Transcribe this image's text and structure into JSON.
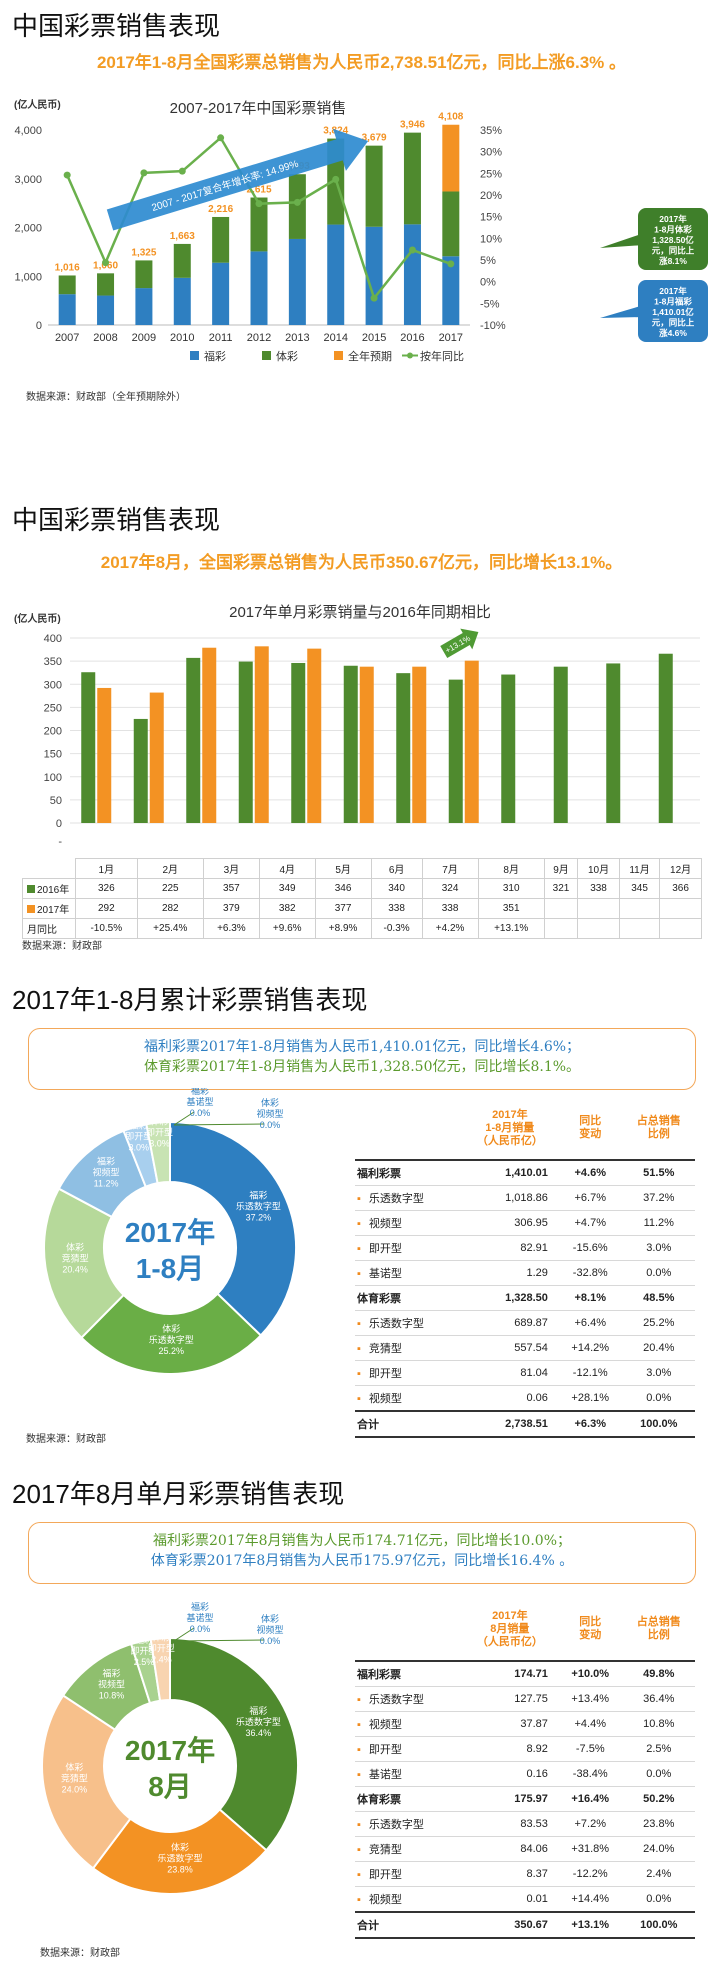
{
  "section1": {
    "title": "中国彩票销售表现",
    "subtitle": "2017年1-8月全国彩票总销售为人民币2,738.51亿元，同比上涨6.3% 。",
    "source": "数据来源：财政部（全年预期除外）"
  },
  "section2": {
    "title": "中国彩票销售表现",
    "subtitle": "2017年8月，全国彩票总销售为人民币350.67亿元，同比增长13.1%。",
    "source": "数据来源：财政部"
  },
  "section3": {
    "title": "2017年1-8月累计彩票销售表现",
    "box_line1": "福利彩票2017年1-8月销售为人民币1,410.01亿元，同比增长4.6%；",
    "box_line2": "体育彩票2017年1-8月销售为人民币1,328.50亿元，同比增长8.1%。",
    "center_line1": "2017年",
    "center_line2": "1-8月",
    "source": "数据来源：财政部"
  },
  "section4": {
    "title": "2017年8月单月彩票销售表现",
    "box_line1": "福利彩票2017年8月销售为人民币174.71亿元，同比增长10.0%；",
    "box_line2": "体育彩票2017年8月销售为人民币175.97亿元，同比增长16.4% 。",
    "center_line1": "2017年",
    "center_line2": "8月",
    "source": "数据来源：财政部"
  },
  "colors": {
    "welfare": "#2e7fc1",
    "sports": "#4f8a2e",
    "forecast": "#f39223",
    "growth": "#6ab04c",
    "accent": "#f39c24"
  },
  "chart_data": [
    {
      "type": "bar",
      "title": "2007-2017年中国彩票销售",
      "ylabel": "(亿人民币)",
      "categories": [
        "2007",
        "2008",
        "2009",
        "2010",
        "2011",
        "2012",
        "2013",
        "2014",
        "2015",
        "2016",
        "2017"
      ],
      "series": [
        {
          "name": "福彩",
          "values": [
            632,
            604,
            757,
            968,
            1278,
            1510,
            1765,
            2060,
            2015,
            2065,
            1410
          ]
        },
        {
          "name": "体彩",
          "values": [
            384,
            456,
            568,
            695,
            938,
            1105,
            1328,
            1764,
            1664,
            1881,
            1329
          ]
        },
        {
          "name": "全年预期",
          "values": [
            0,
            0,
            0,
            0,
            0,
            0,
            0,
            0,
            0,
            0,
            1369
          ]
        },
        {
          "name": "按年同比",
          "values": [
            24.6,
            4.4,
            25.1,
            25.5,
            33.2,
            18.0,
            18.3,
            23.6,
            -3.8,
            7.3,
            4.1
          ]
        }
      ],
      "totals": [
        "1,016",
        "1,060",
        "1,325",
        "1,663",
        "2,216",
        "2,615",
        "3,093",
        "3,824",
        "3,679",
        "3,946",
        "4,108"
      ],
      "ylim": [
        0,
        4000
      ],
      "y2lim": [
        -10,
        35
      ],
      "yticks": [
        "0",
        "1,000",
        "2,000",
        "3,000",
        "4,000"
      ],
      "y2ticks": [
        "-10%",
        "-5%",
        "0%",
        "5%",
        "10%",
        "15%",
        "20%",
        "25%",
        "30%",
        "35%"
      ],
      "arrow_label": "2007 - 2017复合年增长率: 14.99%",
      "callout_sports": "2017年 1-8月体彩 1,328.50亿 元，同比上 涨8.1%",
      "callout_welfare": "2017年 1-8月福彩 1,410.01亿 元，同比上 涨4.6%",
      "legend_position": "bottom"
    },
    {
      "type": "bar",
      "title": "2017年单月彩票销量与2016年同期相比",
      "ylabel": "(亿人民币)",
      "categories": [
        "1月",
        "2月",
        "3月",
        "4月",
        "5月",
        "6月",
        "7月",
        "8月",
        "9月",
        "10月",
        "11月",
        "12月"
      ],
      "series": [
        {
          "name": "2016年",
          "values": [
            326,
            225,
            357,
            349,
            346,
            340,
            324,
            310,
            321,
            338,
            345,
            366
          ]
        },
        {
          "name": "2017年",
          "values": [
            292,
            282,
            379,
            382,
            377,
            338,
            338,
            351,
            null,
            null,
            null,
            null
          ]
        }
      ],
      "table_2016": [
        "326",
        "225",
        "357",
        "349",
        "346",
        "340",
        "324",
        "310",
        "321",
        "338",
        "345",
        "366"
      ],
      "table_2017": [
        "292",
        "282",
        "379",
        "382",
        "377",
        "338",
        "338",
        "351",
        "",
        "",
        "",
        ""
      ],
      "table_yoy": [
        "-10.5%",
        "+25.4%",
        "+6.3%",
        "+9.6%",
        "+8.9%",
        "-0.3%",
        "+4.2%",
        "+13.1%",
        "",
        "",
        "",
        ""
      ],
      "row_label_yoy": "月同比",
      "arrow_label": "+13.1%",
      "ylim": [
        0,
        400
      ],
      "yticks": [
        "0",
        "50",
        "100",
        "150",
        "200",
        "250",
        "300",
        "350",
        "400",
        "-"
      ]
    },
    {
      "type": "pie",
      "labels": [
        "福彩 乐透数字型",
        "体彩 乐透数字型",
        "体彩 竞猜型",
        "福彩 视频型",
        "福彩 即开型",
        "体彩 即开型",
        "福彩 基诺型",
        "体彩 视频型"
      ],
      "values": [
        37.2,
        25.2,
        20.4,
        11.2,
        3.0,
        3.0,
        0.0,
        0.0
      ],
      "table_header": [
        "",
        "2017年 1-8月销量 （人民币亿）",
        "同比 变动",
        "占总销售 比例"
      ],
      "table_rows": [
        {
          "name": "福利彩票",
          "amount": "1,410.01",
          "yoy": "+4.6%",
          "share": "51.5%",
          "group": true
        },
        {
          "name": "乐透数字型",
          "amount": "1,018.86",
          "yoy": "+6.7%",
          "share": "37.2%"
        },
        {
          "name": "视频型",
          "amount": "306.95",
          "yoy": "+4.7%",
          "share": "11.2%"
        },
        {
          "name": "即开型",
          "amount": "82.91",
          "yoy": "-15.6%",
          "share": "3.0%"
        },
        {
          "name": "基诺型",
          "amount": "1.29",
          "yoy": "-32.8%",
          "share": "0.0%"
        },
        {
          "name": "体育彩票",
          "amount": "1,328.50",
          "yoy": "+8.1%",
          "share": "48.5%",
          "group": true
        },
        {
          "name": "乐透数字型",
          "amount": "689.87",
          "yoy": "+6.4%",
          "share": "25.2%"
        },
        {
          "name": "竞猜型",
          "amount": "557.54",
          "yoy": "+14.2%",
          "share": "20.4%"
        },
        {
          "name": "即开型",
          "amount": "81.04",
          "yoy": "-12.1%",
          "share": "3.0%"
        },
        {
          "name": "视频型",
          "amount": "0.06",
          "yoy": "+28.1%",
          "share": "0.0%"
        },
        {
          "name": "合计",
          "amount": "2,738.51",
          "yoy": "+6.3%",
          "share": "100.0%",
          "total": true
        }
      ]
    },
    {
      "type": "pie",
      "labels": [
        "福彩 乐透数字型",
        "体彩 乐透数字型",
        "体彩 竞猜型",
        "福彩 视频型",
        "福彩 即开型",
        "体彩 即开型",
        "福彩 基诺型",
        "体彩 视频型"
      ],
      "values": [
        36.4,
        23.8,
        24.0,
        10.8,
        2.5,
        2.4,
        0.0,
        0.0
      ],
      "table_header": [
        "",
        "2017年 8月销量 （人民币亿）",
        "同比 变动",
        "占总销售 比例"
      ],
      "table_rows": [
        {
          "name": "福利彩票",
          "amount": "174.71",
          "yoy": "+10.0%",
          "share": "49.8%",
          "group": true
        },
        {
          "name": "乐透数字型",
          "amount": "127.75",
          "yoy": "+13.4%",
          "share": "36.4%"
        },
        {
          "name": "视频型",
          "amount": "37.87",
          "yoy": "+4.4%",
          "share": "10.8%"
        },
        {
          "name": "即开型",
          "amount": "8.92",
          "yoy": "-7.5%",
          "share": "2.5%"
        },
        {
          "name": "基诺型",
          "amount": "0.16",
          "yoy": "-38.4%",
          "share": "0.0%"
        },
        {
          "name": "体育彩票",
          "amount": "175.97",
          "yoy": "+16.4%",
          "share": "50.2%",
          "group": true
        },
        {
          "name": "乐透数字型",
          "amount": "83.53",
          "yoy": "+7.2%",
          "share": "23.8%"
        },
        {
          "name": "竞猜型",
          "amount": "84.06",
          "yoy": "+31.8%",
          "share": "24.0%"
        },
        {
          "name": "即开型",
          "amount": "8.37",
          "yoy": "-12.2%",
          "share": "2.4%"
        },
        {
          "name": "视频型",
          "amount": "0.01",
          "yoy": "+14.4%",
          "share": "0.0%"
        },
        {
          "name": "合计",
          "amount": "350.67",
          "yoy": "+13.1%",
          "share": "100.0%",
          "total": true
        }
      ]
    }
  ]
}
